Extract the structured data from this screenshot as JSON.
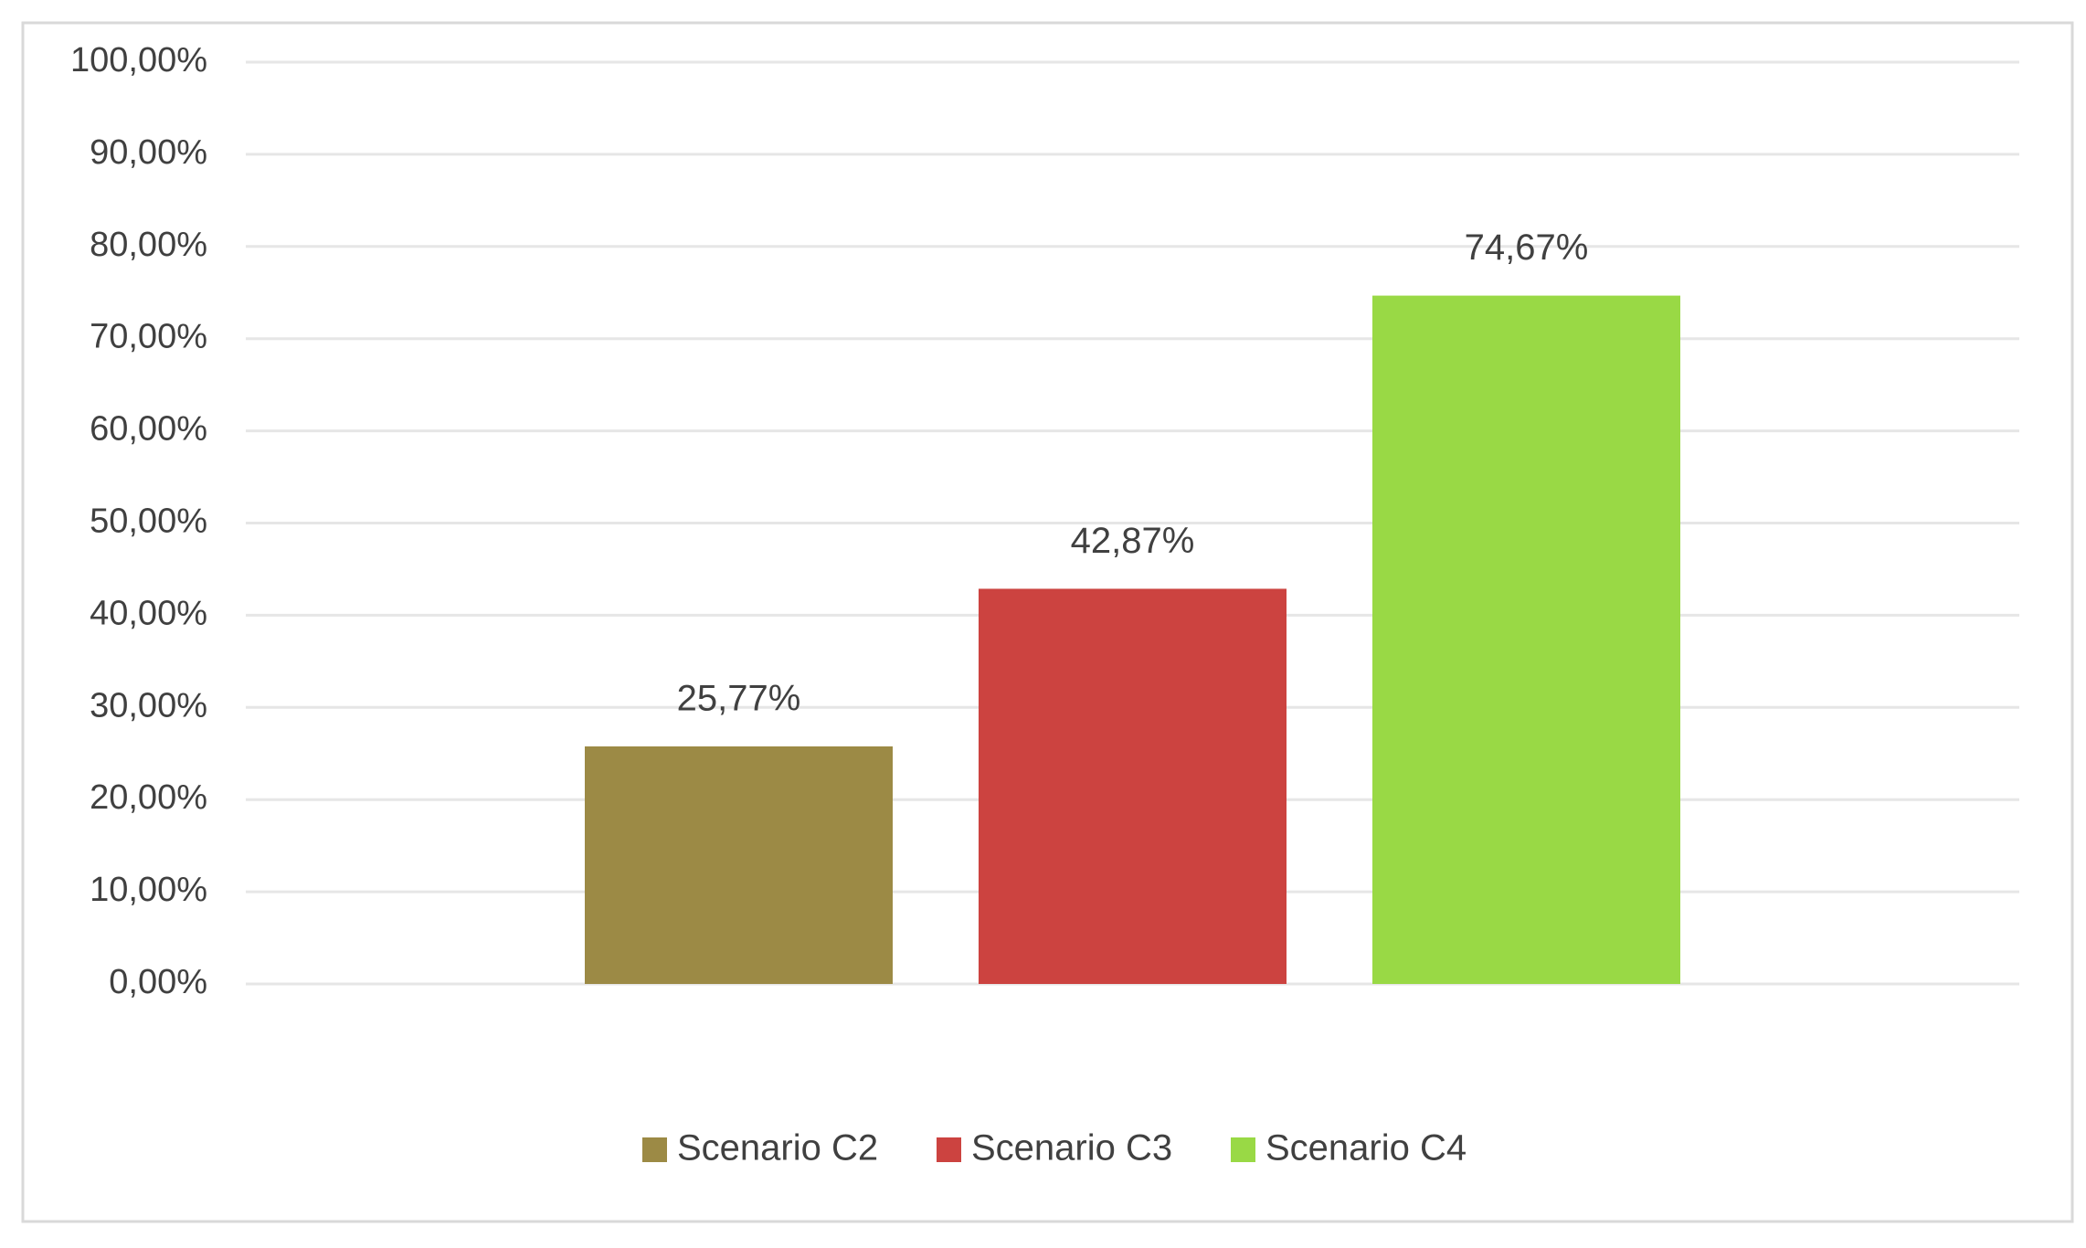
{
  "chart_data": {
    "type": "bar",
    "categories": [
      null
    ],
    "series": [
      {
        "name": "Scenario C2",
        "color": "#9c8a45",
        "values": [
          25.77
        ],
        "value_labels": [
          "25,77%"
        ]
      },
      {
        "name": "Scenario C3",
        "color": "#cc4340",
        "values": [
          42.87
        ],
        "value_labels": [
          "42,87%"
        ]
      },
      {
        "name": "Scenario C4",
        "color": "#99d945",
        "values": [
          74.67
        ],
        "value_labels": [
          "74,67%"
        ]
      }
    ],
    "ylim": [
      0,
      100
    ],
    "yticks": [
      {
        "value": 0,
        "label": "0,00%"
      },
      {
        "value": 10,
        "label": "10,00%"
      },
      {
        "value": 20,
        "label": "20,00%"
      },
      {
        "value": 30,
        "label": "30,00%"
      },
      {
        "value": 40,
        "label": "40,00%"
      },
      {
        "value": 50,
        "label": "50,00%"
      },
      {
        "value": 60,
        "label": "60,00%"
      },
      {
        "value": 70,
        "label": "70,00%"
      },
      {
        "value": 80,
        "label": "80,00%"
      },
      {
        "value": 90,
        "label": "90,00%"
      },
      {
        "value": 100,
        "label": "100,00%"
      }
    ],
    "grid": true,
    "legend": "bottom"
  }
}
